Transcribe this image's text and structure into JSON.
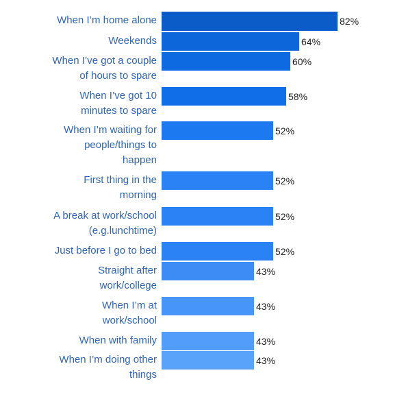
{
  "chart_data": {
    "type": "bar",
    "orientation": "horizontal",
    "title": "",
    "xlabel": "",
    "ylabel": "",
    "xlim": [
      0,
      100
    ],
    "grid": false,
    "legend": "none",
    "categories": [
      [
        "When I’m home alone"
      ],
      [
        "Weekends"
      ],
      [
        "When I’ve got a couple",
        "of hours to spare"
      ],
      [
        "When I’ve got 10",
        "minutes to spare"
      ],
      [
        "When I’m waiting for",
        "people/things to",
        "happen"
      ],
      [
        "First thing in the",
        "morning"
      ],
      [
        "A break at work/school",
        "(e.g.lunchtime)"
      ],
      [
        "Just before I go to bed"
      ],
      [
        "Straight after",
        "work/college"
      ],
      [
        "When I’m at",
        "work/school"
      ],
      [
        "When with family"
      ],
      [
        "When I’m doing other",
        "things"
      ]
    ],
    "values": [
      82,
      64,
      60,
      58,
      52,
      52,
      52,
      52,
      43,
      43,
      43,
      43
    ],
    "value_labels": [
      "82%",
      "64%",
      "60%",
      "58%",
      "52%",
      "52%",
      "52%",
      "52%",
      "43%",
      "43%",
      "43%",
      "43%"
    ],
    "bar_colors": [
      "#0b5cc8",
      "#0d66da",
      "#0e6ae0",
      "#106fe8",
      "#1d79f0",
      "#2a82f4",
      "#2a82f4",
      "#2a82f4",
      "#3d8cf6",
      "#4795f8",
      "#529cfa",
      "#5aa3fb"
    ],
    "label_color": "#2f65b8",
    "value_color": "#222222"
  }
}
